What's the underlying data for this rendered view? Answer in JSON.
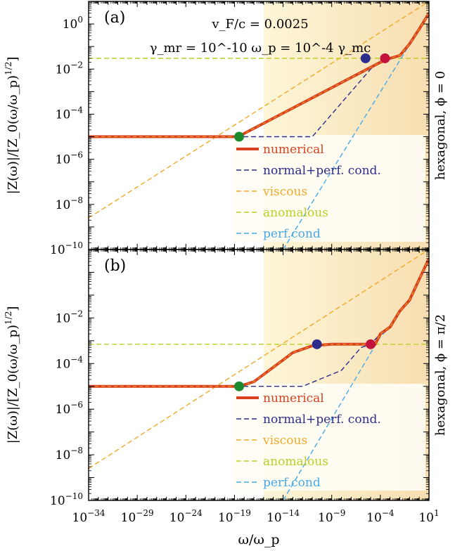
{
  "chart_data": [
    {
      "panel_label": "(a)",
      "type": "line",
      "x_scale": "log",
      "y_scale": "log",
      "xlim": [
        1e-34,
        10
      ],
      "ylim": [
        1e-10,
        10
      ],
      "annotations": [
        "v_F/c = 0.0025",
        "γ_mr = 10^-10 ω_p = 10^-4 γ_mc"
      ],
      "side_label": "hexagonal, ϕ = 0",
      "ylabel": "|Z(ω)|/[Z_0(ω/ω_p)^1/2]",
      "shaded_region_x": [
        1e-16,
        10
      ],
      "legend_location": "lower right",
      "series": [
        {
          "name": "numerical",
          "color": "#d9411e",
          "x": [
            1e-34,
            1e-20,
            3e-19,
            1e-18,
            0.0001,
            0.001,
            0.01,
            0.1,
            1,
            10
          ],
          "y": [
            1e-05,
            1e-05,
            1e-05,
            1.4e-05,
            0.02,
            0.03,
            0.04,
            0.13,
            0.6,
            3
          ]
        },
        {
          "name": "normal+perf. cond.",
          "color": "#2c2d8c",
          "x": [
            1e-34,
            1e-11,
            1e-05,
            0.0001,
            0.001,
            0.01,
            0.1,
            1,
            10
          ],
          "y": [
            1e-05,
            1e-05,
            0.01,
            0.02,
            0.03,
            0.04,
            0.13,
            0.6,
            3
          ]
        },
        {
          "name": "viscous",
          "color": "#f2a929",
          "x": [
            1e-34,
            10
          ],
          "y": [
            2.5e-09,
            10
          ]
        },
        {
          "name": "anomalous",
          "color": "#b9cf27",
          "x": [
            1e-34,
            10
          ],
          "y": [
            0.03,
            0.03
          ]
        },
        {
          "name": "perf.cond",
          "color": "#47a9e8",
          "x": [
            1e-14,
            10
          ],
          "y": [
            1e-10,
            3
          ]
        }
      ],
      "markers": [
        {
          "color": "#1e8a2e",
          "x": 3e-19,
          "y": 1e-05
        },
        {
          "color": "#2c2d8c",
          "x": 3e-06,
          "y": 0.03
        },
        {
          "color": "#c4123f",
          "x": 0.0003,
          "y": 0.03
        }
      ],
      "xticks": [
        "10^-34",
        "10^-29",
        "10^-24",
        "10^-19",
        "10^-14",
        "10^-9",
        "10^-4",
        "10^1"
      ],
      "yticks": [
        "10^-10",
        "10^-8",
        "10^-6",
        "10^-4",
        "10^-2",
        "10^0"
      ]
    },
    {
      "panel_label": "(b)",
      "type": "line",
      "x_scale": "log",
      "y_scale": "log",
      "xlim": [
        1e-34,
        10
      ],
      "ylim": [
        1e-10,
        10
      ],
      "side_label": "hexagonal, ϕ = π/2",
      "ylabel": "|Z(ω)|/[Z_0(ω/ω_p)^1/2]",
      "xlabel": "ω/ω_p",
      "shaded_region_x": [
        1e-16,
        10
      ],
      "legend_location": "lower right",
      "series": [
        {
          "name": "numerical",
          "color": "#d9411e",
          "x": [
            1e-34,
            1e-20,
            3e-19,
            1e-17,
            1e-13,
            1e-11,
            1e-09,
            3e-05,
            0.0001,
            0.001,
            0.01,
            0.1,
            1,
            10
          ],
          "y": [
            1e-05,
            1e-05,
            1e-05,
            1.6e-05,
            0.0003,
            0.0006,
            0.0007,
            0.0007,
            0.002,
            0.004,
            0.02,
            0.06,
            0.5,
            4
          ]
        },
        {
          "name": "normal+perf. cond.",
          "color": "#2c2d8c",
          "x": [
            1e-34,
            1e-12,
            1e-08,
            1e-06,
            1e-05,
            0.0001,
            0.001,
            0.01,
            0.1,
            1,
            10
          ],
          "y": [
            1e-05,
            1e-05,
            5e-05,
            0.0005,
            0.0007,
            0.002,
            0.004,
            0.02,
            0.06,
            0.5,
            4
          ]
        },
        {
          "name": "viscous",
          "color": "#f2a929",
          "x": [
            1e-34,
            10
          ],
          "y": [
            2.5e-09,
            10
          ]
        },
        {
          "name": "anomalous",
          "color": "#b9cf27",
          "x": [
            1e-34,
            10
          ],
          "y": [
            0.0007,
            0.0007
          ]
        },
        {
          "name": "perf.cond",
          "color": "#47a9e8",
          "x": [
            1e-14,
            0.0001,
            0.001,
            0.01,
            0.1,
            1,
            10
          ],
          "y": [
            1e-10,
            0.0015,
            0.004,
            0.02,
            0.06,
            0.5,
            4
          ]
        }
      ],
      "markers": [
        {
          "color": "#1e8a2e",
          "x": 3e-19,
          "y": 1e-05
        },
        {
          "color": "#2c2d8c",
          "x": 3e-11,
          "y": 0.0007
        },
        {
          "color": "#c4123f",
          "x": 1e-05,
          "y": 0.0007
        }
      ],
      "xticks": [
        "10^-34",
        "10^-29",
        "10^-24",
        "10^-19",
        "10^-14",
        "10^-9",
        "10^-4",
        "10^1"
      ],
      "yticks": [
        "10^-10",
        "10^-8",
        "10^-6",
        "10^-4",
        "10^-2"
      ]
    }
  ],
  "colors": {
    "shade": "#fbf0cf",
    "numerical": "#d9411e",
    "normal": "#2c2d8c",
    "viscous": "#f2a929",
    "anomalous": "#b9cf27",
    "perfcond": "#47a9e8",
    "marker_green": "#1e8a2e",
    "marker_blue": "#2c2d8c",
    "marker_red": "#c4123f"
  }
}
